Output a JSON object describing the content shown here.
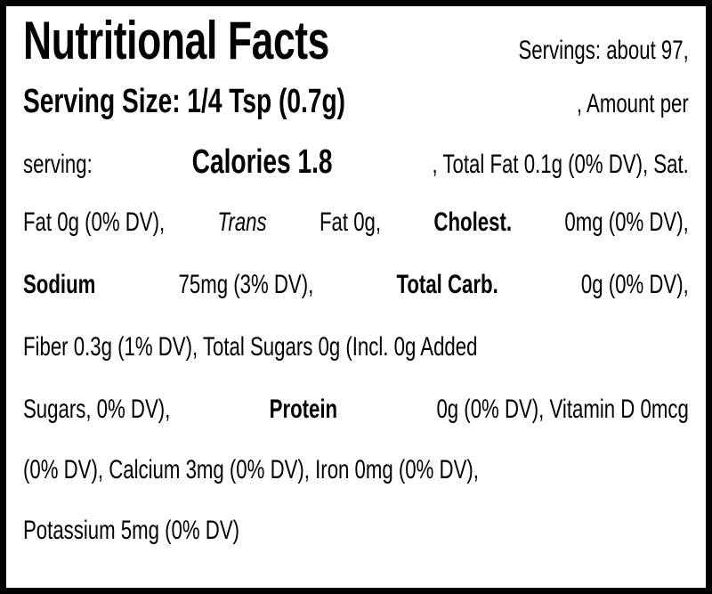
{
  "label": {
    "title": "Nutritional Facts",
    "lines": [
      [
        "Servings: about 97,"
      ],
      [
        "Serving Size: 1/4 Tsp (0.7g)",
        ", Amount per"
      ],
      [
        "serving:",
        "Calories 1.8",
        ", Total Fat 0.1g (0% DV), Sat."
      ],
      [
        "Fat 0g (0% DV), ",
        "Trans",
        " Fat 0g, ",
        "Cholest.",
        " 0mg (0% DV),"
      ],
      [
        "Sodium",
        " 75mg (3% DV), ",
        "Total Carb.",
        " 0g (0% DV),"
      ],
      [
        "Fiber 0.3g (1% DV), Total Sugars 0g (Incl. 0g Added"
      ],
      [
        "Sugars, 0% DV), ",
        "Protein",
        " 0g (0% DV), Vitamin D 0mcg"
      ],
      [
        "(0% DV), Calcium 3mg (0% DV), Iron 0mg (0% DV),"
      ],
      [
        "Potassium 5mg (0% DV)"
      ]
    ]
  }
}
